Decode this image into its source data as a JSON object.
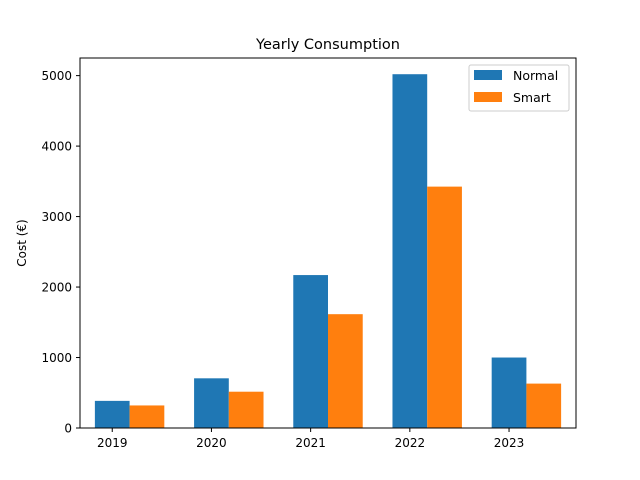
{
  "chart_data": {
    "type": "bar",
    "title": "Yearly Consumption",
    "xlabel": "",
    "ylabel": "Cost (€)",
    "categories": [
      "2019",
      "2020",
      "2021",
      "2022",
      "2023"
    ],
    "series": [
      {
        "name": "Normal",
        "color": "#1f77b4",
        "values": [
          385,
          705,
          2170,
          5020,
          1000
        ]
      },
      {
        "name": "Smart",
        "color": "#ff7f0e",
        "values": [
          320,
          515,
          1615,
          3425,
          630
        ]
      }
    ],
    "ylim": [
      0,
      5250
    ],
    "yticks": [
      0,
      1000,
      2000,
      3000,
      4000,
      5000
    ],
    "grid": false,
    "legend_position": "top-right"
  }
}
